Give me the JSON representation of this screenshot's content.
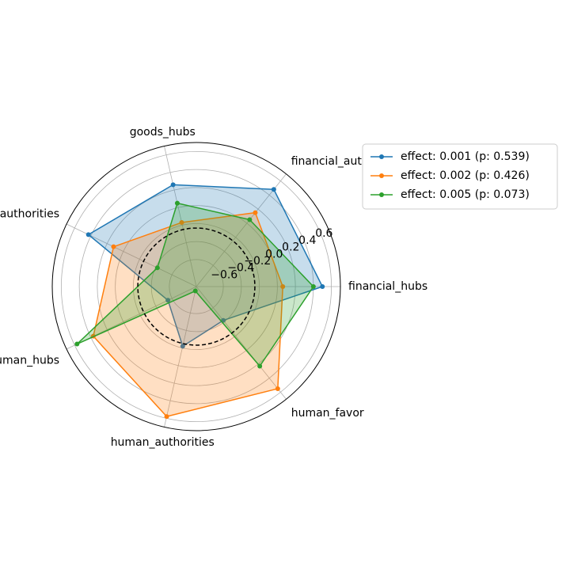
{
  "chart_data": {
    "type": "radar",
    "title": "",
    "categories": [
      "financial_hubs",
      "financial_authorities",
      "goods_hubs",
      "goods_authorities",
      "human_hubs",
      "human_authorities",
      "human_favor"
    ],
    "r_ticks": [
      -0.6,
      -0.4,
      -0.2,
      0.0,
      0.2,
      0.4,
      0.6
    ],
    "r_tick_labels": [
      "−0.6",
      "−0.4",
      "−0.2",
      "0.0",
      "0.2",
      "0.4",
      "0.6"
    ],
    "r_range": [
      -0.9,
      0.7
    ],
    "reference_circle": -0.25,
    "legend_position": "upper-right-outside",
    "series": [
      {
        "name": "effect: 0.001 (p: 0.539)",
        "color": "#1f77b4",
        "values": [
          0.5,
          0.48,
          0.26,
          0.43,
          -0.55,
          -0.22,
          -0.42
        ]
      },
      {
        "name": "effect: 0.002 (p: 0.426)",
        "color": "#ff7f0e",
        "values": [
          0.06,
          0.15,
          -0.17,
          0.12,
          0.37,
          0.58,
          0.55
        ]
      },
      {
        "name": "effect: 0.005 (p: 0.073)",
        "color": "#2ca02c",
        "values": [
          0.4,
          0.05,
          0.05,
          -0.42,
          0.57,
          -0.85,
          0.23
        ]
      }
    ]
  }
}
